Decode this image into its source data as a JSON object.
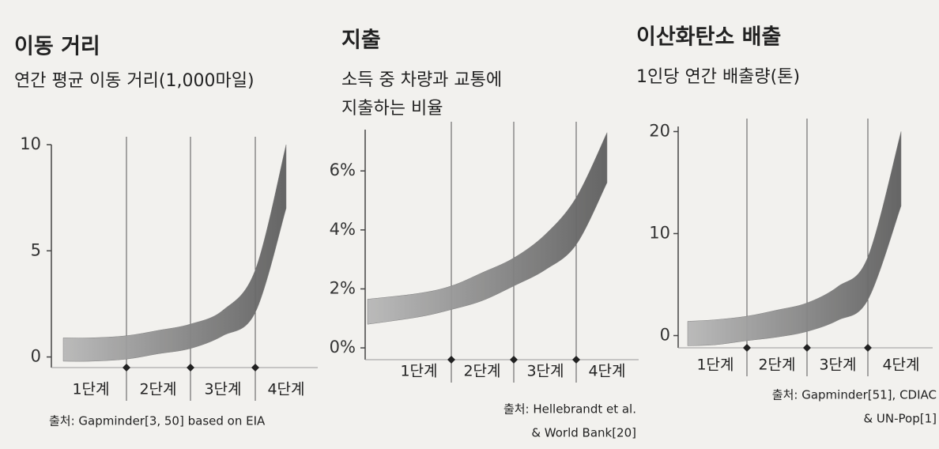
{
  "chart_data": [
    {
      "type": "band",
      "title": "이동 거리",
      "subtitle": [
        "연간 평균 이동 거리(1,000마일)"
      ],
      "source": [
        "출처: Gapminder[3, 50] based on EIA"
      ],
      "categories": [
        null,
        "1단계",
        null,
        "2단계",
        null,
        "3단계",
        null,
        "4단계"
      ],
      "high": [
        0.9,
        0.9,
        1.0,
        1.25,
        1.55,
        2.2,
        4.1,
        10
      ],
      "low": [
        -0.2,
        -0.2,
        -0.1,
        0.15,
        0.4,
        1.0,
        2.1,
        7
      ],
      "color": "#7a7a7a",
      "ylim": [
        -0.5,
        10
      ],
      "yticks": [
        0,
        5,
        10
      ]
    },
    {
      "type": "band",
      "title": "지출",
      "subtitle": [
        "소득 중 차량과 교통에",
        "지출하는 비율"
      ],
      "source": [
        "출처: Hellebrandt et al.",
        "& World Bank[20]"
      ],
      "categories": [
        null,
        "1단계",
        null,
        "2단계",
        null,
        "3단계",
        null,
        "4단계"
      ],
      "high": [
        1.65,
        1.85,
        2.1,
        2.55,
        3.05,
        3.85,
        5.1,
        7.3
      ],
      "low": [
        0.8,
        1.05,
        1.3,
        1.6,
        2.1,
        2.65,
        3.5,
        5.6
      ],
      "color": "#7a7a7a",
      "ylim": [
        -0.4,
        7.4
      ],
      "yticks": [
        {
          "value": 0,
          "label": "0%"
        },
        {
          "value": 2,
          "label": "2%"
        },
        {
          "value": 4,
          "label": "4%"
        },
        {
          "value": 6,
          "label": "6%"
        }
      ]
    },
    {
      "type": "band",
      "title": "이산화탄소 배출",
      "subtitle": [
        "1인당 연간 배출량(톤)"
      ],
      "source": [
        "출처: Gapminder[51], CDIAC",
        "& UN-Pop[1]"
      ],
      "categories": [
        null,
        "1단계",
        null,
        "2단계",
        null,
        "3단계",
        null,
        "4단계"
      ],
      "high": [
        1.4,
        1.55,
        1.9,
        2.5,
        3.2,
        4.8,
        7.7,
        20
      ],
      "low": [
        -1.0,
        -0.9,
        -0.5,
        -0.15,
        0.4,
        1.5,
        3.5,
        12.7
      ],
      "color": "#7a7a7a",
      "ylim": [
        -1.2,
        20.5
      ],
      "yticks": [
        0,
        10,
        20
      ]
    }
  ]
}
